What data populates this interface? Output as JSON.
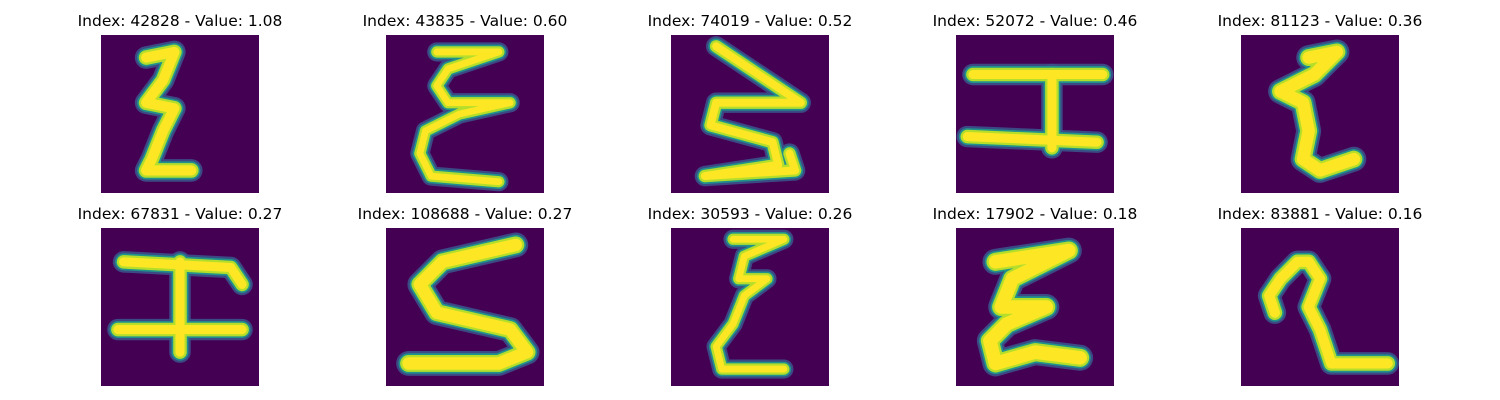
{
  "figure": {
    "colors": {
      "background": "#440154",
      "stroke_core": "#fde725",
      "stroke_mid": "#b5de2b",
      "stroke_edge": "#21918c",
      "stroke_halo": "#3b528b"
    },
    "panels": [
      {
        "title": "Index: 42828 - Value: 1.08",
        "glyph": "epsilon-tall"
      },
      {
        "title": "Index: 43835 - Value: 0.60",
        "glyph": "epsilon-wide"
      },
      {
        "title": "Index: 74019 - Value: 0.52",
        "glyph": "sigma"
      },
      {
        "title": "Index: 52072 - Value: 0.46",
        "glyph": "i-beam"
      },
      {
        "title": "Index: 81123 - Value: 0.36",
        "glyph": "xi"
      },
      {
        "title": "Index: 67831 - Value: 0.27",
        "glyph": "i-beam-double"
      },
      {
        "title": "Index: 108688 - Value: 0.27",
        "glyph": "s-curve"
      },
      {
        "title": "Index: 30593 - Value: 0.26",
        "glyph": "epsilon-narrow"
      },
      {
        "title": "Index: 17902 - Value: 0.18",
        "glyph": "xi-bold"
      },
      {
        "title": "Index: 83881 - Value: 0.16",
        "glyph": "hook"
      }
    ]
  }
}
